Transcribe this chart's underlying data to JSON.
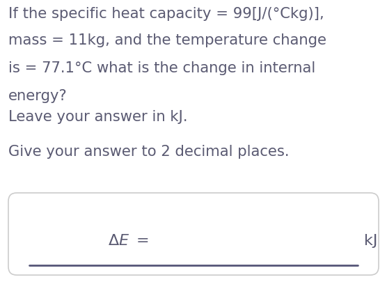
{
  "bg_color": "#ffffff",
  "text_color": "#5a5a72",
  "line1": "If the specific heat capacity = 99[J/(°Ckg)],",
  "line2": "mass = 11kg, and the temperature change",
  "line3": "is = 77.1°C what is the change in internal",
  "line4": "energy?",
  "line5": "Leave your answer in kJ.",
  "line6": "Give your answer to 2 decimal places.",
  "delta_label": "$\\Delta E\\ =$",
  "unit_label": "kJ",
  "main_fontsize": 15.2,
  "answer_fontsize": 15.5,
  "box_line_color": "#cccccc",
  "underline_color": "#555577"
}
